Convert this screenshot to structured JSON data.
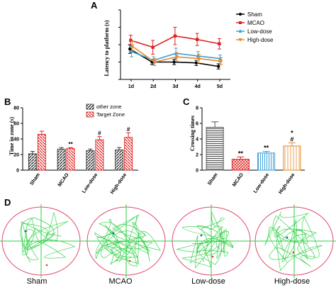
{
  "figure": {
    "panel_labels": [
      "A",
      "B",
      "C",
      "D"
    ],
    "groups": [
      "Sham",
      "MCAO",
      "Low-dose",
      "High-dose"
    ]
  },
  "chart_data": [
    {
      "panel": "A",
      "type": "line",
      "title": "",
      "ylabel": "Latency to platform (s)",
      "xlabel": "",
      "categories": [
        "1d",
        "2d",
        "3d",
        "4d",
        "5d"
      ],
      "ylim": [
        0,
        80
      ],
      "yticks": [
        0,
        20,
        40,
        60,
        80
      ],
      "legend_position": "right",
      "series": [
        {
          "name": "Sham",
          "color": "#000000",
          "marker": "circle",
          "values": [
            35,
            20,
            20,
            19,
            15
          ],
          "errors": [
            5,
            3,
            3,
            3,
            3
          ]
        },
        {
          "name": "MCAO",
          "color": "#e02020",
          "marker": "square",
          "values": [
            45,
            37,
            50,
            46,
            41
          ],
          "errors": [
            6,
            8,
            10,
            7,
            6
          ]
        },
        {
          "name": "Low-dose",
          "color": "#3aa0d8",
          "marker": "triangle-up",
          "values": [
            32,
            22,
            30,
            27,
            24
          ],
          "errors": [
            6,
            4,
            6,
            5,
            4
          ]
        },
        {
          "name": "High-dose",
          "color": "#e88a2a",
          "marker": "triangle-down",
          "values": [
            38,
            20,
            26,
            24,
            21
          ],
          "errors": [
            6,
            4,
            5,
            5,
            4
          ]
        }
      ]
    },
    {
      "panel": "B",
      "type": "bar",
      "title": "",
      "ylabel": "Time in zone (s)",
      "categories": [
        "Sham",
        "MCAO",
        "Low-dose",
        "High-dose"
      ],
      "ylim": [
        0,
        80
      ],
      "yticks": [
        0,
        20,
        40,
        60,
        80
      ],
      "legend_position": "top-right",
      "series": [
        {
          "name": "other zone",
          "color": "#555555",
          "values": [
            21,
            27,
            25,
            26
          ],
          "errors": [
            3,
            2,
            2,
            3
          ]
        },
        {
          "name": "Target Zone",
          "color": "#e02020",
          "values": [
            46,
            28,
            39,
            42
          ],
          "errors": [
            4,
            1,
            4,
            6
          ]
        }
      ],
      "annotations": [
        {
          "category": "MCAO",
          "series": "Target Zone",
          "text": "**"
        },
        {
          "category": "Low-dose",
          "series": "Target Zone",
          "text": "#"
        },
        {
          "category": "High-dose",
          "series": "Target Zone",
          "text": "#"
        }
      ]
    },
    {
      "panel": "C",
      "type": "bar",
      "title": "",
      "ylabel": "Crossing times",
      "categories": [
        "Sham",
        "MCAO",
        "Low-dose",
        "High-dose"
      ],
      "ylim": [
        0,
        8
      ],
      "yticks": [
        0,
        2,
        4,
        6,
        8
      ],
      "series": [
        {
          "name": "",
          "values": [
            5.5,
            1.4,
            2.2,
            3.1
          ],
          "errors": [
            0.7,
            0.3,
            0.2,
            0.4
          ],
          "colors": [
            "#555555",
            "#e02020",
            "#3aa0d8",
            "#e88a2a"
          ]
        }
      ],
      "annotations": [
        {
          "category": "MCAO",
          "text": "**"
        },
        {
          "category": "Low-dose",
          "text": "**"
        },
        {
          "category": "High-dose",
          "text": "#"
        },
        {
          "category": "High-dose",
          "text": "*"
        }
      ]
    }
  ],
  "tracks": {
    "labels": [
      "Sham",
      "MCAO",
      "Low-dose",
      "High-dose"
    ]
  }
}
